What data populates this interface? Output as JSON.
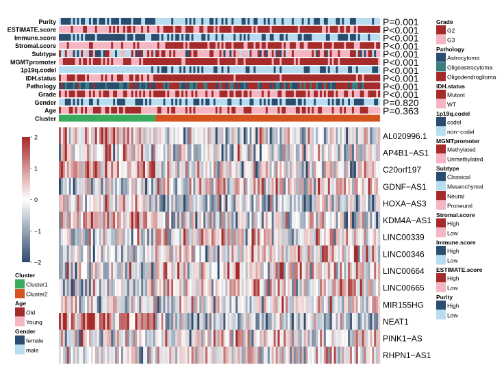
{
  "chart_data": {
    "type": "heatmap",
    "n_samples": 160,
    "cluster1_count": 48,
    "annotation_rows": [
      {
        "label": "Purity",
        "pvalue": "P=0.001"
      },
      {
        "label": "ESTIMATE.score",
        "pvalue": "P<0.001"
      },
      {
        "label": "Immune.score",
        "pvalue": "P<0.001"
      },
      {
        "label": "Stromal.score",
        "pvalue": "P<0.001"
      },
      {
        "label": "Subtype",
        "pvalue": "P<0.001"
      },
      {
        "label": "MGMTpromoter",
        "pvalue": "P<0.001"
      },
      {
        "label": "1p19q.codel",
        "pvalue": "P<0.001"
      },
      {
        "label": "IDH.status",
        "pvalue": "P<0.001"
      },
      {
        "label": "Pathology",
        "pvalue": "P<0.001"
      },
      {
        "label": "Grade",
        "pvalue": "P<0.001"
      },
      {
        "label": "Gender",
        "pvalue": "P=0.820"
      },
      {
        "label": "Age",
        "pvalue": "P=0.363"
      },
      {
        "label": "Cluster",
        "pvalue": ""
      }
    ],
    "genes": [
      "AL020996.1",
      "AP4B1−AS1",
      "C20orf197",
      "GDNF−AS1",
      "HOXA−AS3",
      "KDM4A−AS1",
      "LINC00339",
      "LINC00346",
      "LINC00664",
      "LINC00665",
      "MIR155HG",
      "NEAT1",
      "PINK1−AS",
      "RHPN1−AS1"
    ],
    "gene_cluster_means": [
      [
        0.4,
        -0.3
      ],
      [
        0.3,
        -0.2
      ],
      [
        0.9,
        -0.1
      ],
      [
        -0.3,
        0.1
      ],
      [
        0.3,
        -0.5
      ],
      [
        0.7,
        -0.2
      ],
      [
        -0.5,
        0.2
      ],
      [
        -0.2,
        0.1
      ],
      [
        -0.4,
        0.3
      ],
      [
        -0.5,
        0.3
      ],
      [
        0.2,
        -0.1
      ],
      [
        1.0,
        -0.6
      ],
      [
        -0.3,
        0.2
      ],
      [
        -0.2,
        0.1
      ]
    ],
    "colorbar": {
      "range": [
        -2,
        2
      ],
      "ticks": [
        "2",
        "1",
        "0",
        "−1",
        "−2"
      ],
      "low_color": "#2e4a6b",
      "mid_color": "#ffffff",
      "high_color": "#a52a2a"
    },
    "legends_right": [
      {
        "title": "Grade",
        "items": [
          {
            "label": "G2",
            "color": "#a52a2a"
          },
          {
            "label": "G3",
            "color": "#f4b6c2"
          }
        ]
      },
      {
        "title": "Pathology",
        "items": [
          {
            "label": "Astrocytoma",
            "color": "#2a4c6e"
          },
          {
            "label": "Oligoastrocytoma",
            "color": "#3a7f80"
          },
          {
            "label": "Oligodendroglioma",
            "color": "#a52a2a"
          }
        ]
      },
      {
        "title": "IDH.status",
        "items": [
          {
            "label": "Mutant",
            "color": "#a52a2a"
          },
          {
            "label": "WT",
            "color": "#f4b6c2"
          }
        ]
      },
      {
        "title": "1p19q.codel",
        "items": [
          {
            "label": "codel",
            "color": "#2a4c6e"
          },
          {
            "label": "non−codel",
            "color": "#b9ddf0"
          }
        ]
      },
      {
        "title": "MGMTpromoter",
        "items": [
          {
            "label": "Methylated",
            "color": "#a52a2a"
          },
          {
            "label": "Unmethylated",
            "color": "#f4b6c2"
          }
        ]
      },
      {
        "title": "Subtype",
        "items": [
          {
            "label": "Classical",
            "color": "#2a4c6e"
          },
          {
            "label": "Mesenchymal",
            "color": "#b9ddf0"
          },
          {
            "label": "Neural",
            "color": "#a52a2a"
          },
          {
            "label": "Proneural",
            "color": "#f4b6c2"
          }
        ]
      },
      {
        "title": "Stromal.score",
        "items": [
          {
            "label": "High",
            "color": "#a52a2a"
          },
          {
            "label": "Low",
            "color": "#f4b6c2"
          }
        ]
      },
      {
        "title": "Immune.score",
        "items": [
          {
            "label": "High",
            "color": "#2a4c6e"
          },
          {
            "label": "Low",
            "color": "#b9ddf0"
          }
        ]
      },
      {
        "title": "ESTIMATE.score",
        "items": [
          {
            "label": "High",
            "color": "#a52a2a"
          },
          {
            "label": "Low",
            "color": "#f4b6c2"
          }
        ]
      },
      {
        "title": "Purity",
        "items": [
          {
            "label": "High",
            "color": "#2a4c6e"
          },
          {
            "label": "Low",
            "color": "#b9ddf0"
          }
        ]
      }
    ],
    "legends_left": [
      {
        "title": "Cluster",
        "items": [
          {
            "label": "Cluster1",
            "color": "#3aaa5c"
          },
          {
            "label": "Cluster2",
            "color": "#d4531f"
          }
        ]
      },
      {
        "title": "Age",
        "items": [
          {
            "label": "Old",
            "color": "#a52a2a"
          },
          {
            "label": "Young",
            "color": "#f4b6c2"
          }
        ]
      },
      {
        "title": "Gender",
        "items": [
          {
            "label": "female",
            "color": "#2a4c6e"
          },
          {
            "label": "male",
            "color": "#b9ddf0"
          }
        ]
      }
    ]
  }
}
